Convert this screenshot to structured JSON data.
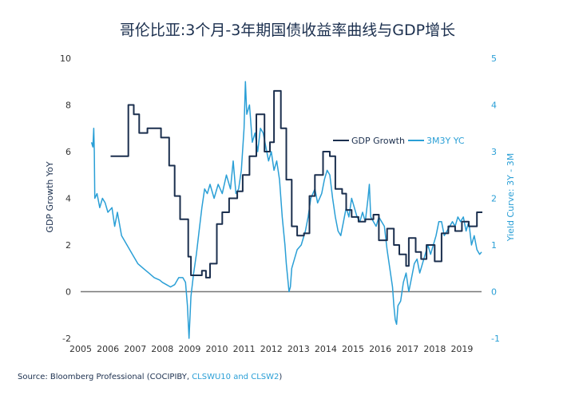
{
  "chart_data": {
    "type": "line",
    "title": "哥伦比亚:3个月-3年期国债收益率曲线与GDP增长",
    "xlabel": "",
    "ylabel": "GDP Growth YoY",
    "ylabel_right": "Yield Curve: 3Y - 3M",
    "ylim": [
      -2,
      10
    ],
    "ylim_right": [
      -1,
      5
    ],
    "x_ticks": [
      "2005",
      "2006",
      "2007",
      "2008",
      "2009",
      "2010",
      "2011",
      "2012",
      "2013",
      "2014",
      "2015",
      "2016",
      "2017",
      "2018",
      "2019"
    ],
    "y_ticks": [
      "-2",
      "0",
      "2",
      "4",
      "6",
      "8",
      "10"
    ],
    "y_ticks_right": [
      "-1",
      "0",
      "1",
      "2",
      "3",
      "4",
      "5"
    ],
    "grid": false,
    "legend_position": "top-right",
    "colors": {
      "gdp": "#1b2f4e",
      "yc": "#2a9fd6"
    },
    "series": [
      {
        "name": "GDP Growth",
        "axis": "left",
        "step": true,
        "points": [
          [
            2006.1,
            5.8
          ],
          [
            2006.75,
            8.0
          ],
          [
            2006.95,
            7.6
          ],
          [
            2007.15,
            6.8
          ],
          [
            2007.45,
            7.0
          ],
          [
            2007.95,
            6.6
          ],
          [
            2008.25,
            5.4
          ],
          [
            2008.45,
            4.1
          ],
          [
            2008.65,
            3.1
          ],
          [
            2008.95,
            1.5
          ],
          [
            2009.05,
            0.7
          ],
          [
            2009.45,
            0.9
          ],
          [
            2009.6,
            0.6
          ],
          [
            2009.75,
            1.2
          ],
          [
            2010.0,
            2.9
          ],
          [
            2010.2,
            3.4
          ],
          [
            2010.45,
            4.0
          ],
          [
            2010.75,
            4.3
          ],
          [
            2010.95,
            5.0
          ],
          [
            2011.2,
            5.8
          ],
          [
            2011.45,
            7.6
          ],
          [
            2011.75,
            6.0
          ],
          [
            2011.95,
            6.4
          ],
          [
            2012.1,
            8.6
          ],
          [
            2012.35,
            7.0
          ],
          [
            2012.55,
            4.8
          ],
          [
            2012.75,
            2.8
          ],
          [
            2012.95,
            2.4
          ],
          [
            2013.2,
            2.5
          ],
          [
            2013.4,
            4.1
          ],
          [
            2013.6,
            5.0
          ],
          [
            2013.9,
            6.0
          ],
          [
            2014.15,
            5.8
          ],
          [
            2014.35,
            4.4
          ],
          [
            2014.6,
            4.2
          ],
          [
            2014.75,
            3.5
          ],
          [
            2014.95,
            3.2
          ],
          [
            2015.2,
            3.0
          ],
          [
            2015.45,
            3.1
          ],
          [
            2015.75,
            3.3
          ],
          [
            2015.95,
            2.2
          ],
          [
            2016.25,
            2.7
          ],
          [
            2016.5,
            2.0
          ],
          [
            2016.7,
            1.6
          ],
          [
            2016.95,
            1.1
          ],
          [
            2017.05,
            2.3
          ],
          [
            2017.3,
            1.7
          ],
          [
            2017.5,
            1.4
          ],
          [
            2017.7,
            2.0
          ],
          [
            2018.0,
            1.3
          ],
          [
            2018.25,
            2.5
          ],
          [
            2018.5,
            2.8
          ],
          [
            2018.75,
            2.6
          ],
          [
            2019.0,
            3.0
          ],
          [
            2019.25,
            2.8
          ],
          [
            2019.55,
            3.4
          ],
          [
            2019.75,
            3.4
          ]
        ]
      },
      {
        "name": "3M3Y YC",
        "axis": "right",
        "step": false,
        "points": [
          [
            2005.4,
            3.2
          ],
          [
            2005.45,
            3.1
          ],
          [
            2005.48,
            3.5
          ],
          [
            2005.5,
            3.0
          ],
          [
            2005.52,
            2.0
          ],
          [
            2005.6,
            2.1
          ],
          [
            2005.7,
            1.8
          ],
          [
            2005.8,
            2.0
          ],
          [
            2005.9,
            1.9
          ],
          [
            2006.0,
            1.7
          ],
          [
            2006.15,
            1.8
          ],
          [
            2006.25,
            1.4
          ],
          [
            2006.35,
            1.7
          ],
          [
            2006.5,
            1.2
          ],
          [
            2006.7,
            1.0
          ],
          [
            2006.9,
            0.8
          ],
          [
            2007.1,
            0.6
          ],
          [
            2007.3,
            0.5
          ],
          [
            2007.5,
            0.4
          ],
          [
            2007.7,
            0.3
          ],
          [
            2007.9,
            0.25
          ],
          [
            2008.0,
            0.2
          ],
          [
            2008.15,
            0.15
          ],
          [
            2008.3,
            0.1
          ],
          [
            2008.45,
            0.15
          ],
          [
            2008.6,
            0.3
          ],
          [
            2008.75,
            0.3
          ],
          [
            2008.85,
            0.2
          ],
          [
            2008.92,
            -0.3
          ],
          [
            2008.98,
            -1.0
          ],
          [
            2009.05,
            -0.1
          ],
          [
            2009.15,
            0.4
          ],
          [
            2009.25,
            0.8
          ],
          [
            2009.35,
            1.3
          ],
          [
            2009.45,
            1.8
          ],
          [
            2009.55,
            2.2
          ],
          [
            2009.65,
            2.1
          ],
          [
            2009.75,
            2.3
          ],
          [
            2009.9,
            2.0
          ],
          [
            2010.05,
            2.3
          ],
          [
            2010.2,
            2.1
          ],
          [
            2010.35,
            2.5
          ],
          [
            2010.5,
            2.2
          ],
          [
            2010.6,
            2.8
          ],
          [
            2010.7,
            2.1
          ],
          [
            2010.8,
            2.2
          ],
          [
            2010.9,
            2.6
          ],
          [
            2011.0,
            3.5
          ],
          [
            2011.05,
            4.5
          ],
          [
            2011.1,
            3.8
          ],
          [
            2011.2,
            4.0
          ],
          [
            2011.3,
            3.2
          ],
          [
            2011.4,
            3.4
          ],
          [
            2011.5,
            3.0
          ],
          [
            2011.6,
            3.5
          ],
          [
            2011.7,
            3.4
          ],
          [
            2011.8,
            3.1
          ],
          [
            2011.9,
            2.8
          ],
          [
            2012.0,
            3.0
          ],
          [
            2012.1,
            2.6
          ],
          [
            2012.2,
            2.8
          ],
          [
            2012.3,
            2.4
          ],
          [
            2012.4,
            1.6
          ],
          [
            2012.5,
            1.0
          ],
          [
            2012.55,
            0.6
          ],
          [
            2012.6,
            0.3
          ],
          [
            2012.65,
            0.0
          ],
          [
            2012.7,
            0.1
          ],
          [
            2012.75,
            0.5
          ],
          [
            2012.85,
            0.7
          ],
          [
            2012.95,
            0.9
          ],
          [
            2013.1,
            1.0
          ],
          [
            2013.25,
            1.3
          ],
          [
            2013.35,
            1.6
          ],
          [
            2013.45,
            2.0
          ],
          [
            2013.6,
            2.2
          ],
          [
            2013.7,
            1.9
          ],
          [
            2013.85,
            2.1
          ],
          [
            2013.95,
            2.4
          ],
          [
            2014.05,
            2.6
          ],
          [
            2014.15,
            2.5
          ],
          [
            2014.25,
            2.0
          ],
          [
            2014.35,
            1.6
          ],
          [
            2014.45,
            1.3
          ],
          [
            2014.55,
            1.2
          ],
          [
            2014.65,
            1.5
          ],
          [
            2014.75,
            1.8
          ],
          [
            2014.85,
            1.6
          ],
          [
            2014.95,
            2.0
          ],
          [
            2015.05,
            1.8
          ],
          [
            2015.15,
            1.6
          ],
          [
            2015.25,
            1.5
          ],
          [
            2015.35,
            1.7
          ],
          [
            2015.45,
            1.5
          ],
          [
            2015.55,
            2.0
          ],
          [
            2015.6,
            2.3
          ],
          [
            2015.65,
            1.6
          ],
          [
            2015.75,
            1.5
          ],
          [
            2015.85,
            1.4
          ],
          [
            2015.95,
            1.6
          ],
          [
            2016.05,
            1.5
          ],
          [
            2016.15,
            1.4
          ],
          [
            2016.25,
            0.9
          ],
          [
            2016.35,
            0.5
          ],
          [
            2016.45,
            0.1
          ],
          [
            2016.5,
            -0.3
          ],
          [
            2016.55,
            -0.6
          ],
          [
            2016.6,
            -0.7
          ],
          [
            2016.65,
            -0.3
          ],
          [
            2016.75,
            -0.2
          ],
          [
            2016.85,
            0.2
          ],
          [
            2016.95,
            0.4
          ],
          [
            2017.05,
            0.0
          ],
          [
            2017.15,
            0.3
          ],
          [
            2017.25,
            0.6
          ],
          [
            2017.35,
            0.7
          ],
          [
            2017.45,
            0.4
          ],
          [
            2017.55,
            0.6
          ],
          [
            2017.65,
            0.8
          ],
          [
            2017.75,
            1.0
          ],
          [
            2017.85,
            0.8
          ],
          [
            2017.95,
            1.0
          ],
          [
            2018.05,
            1.2
          ],
          [
            2018.15,
            1.5
          ],
          [
            2018.25,
            1.5
          ],
          [
            2018.35,
            1.2
          ],
          [
            2018.45,
            1.3
          ],
          [
            2018.55,
            1.4
          ],
          [
            2018.65,
            1.5
          ],
          [
            2018.75,
            1.4
          ],
          [
            2018.85,
            1.6
          ],
          [
            2018.95,
            1.5
          ],
          [
            2019.05,
            1.6
          ],
          [
            2019.15,
            1.3
          ],
          [
            2019.25,
            1.5
          ],
          [
            2019.35,
            1.0
          ],
          [
            2019.45,
            1.2
          ],
          [
            2019.55,
            0.9
          ],
          [
            2019.65,
            0.8
          ],
          [
            2019.72,
            0.85
          ]
        ]
      }
    ]
  },
  "source": {
    "prefix": "Source: Bloomberg Professional (COCIPIBY, ",
    "highlight": "CLSWU10 and CLSW2",
    "suffix": ")"
  }
}
